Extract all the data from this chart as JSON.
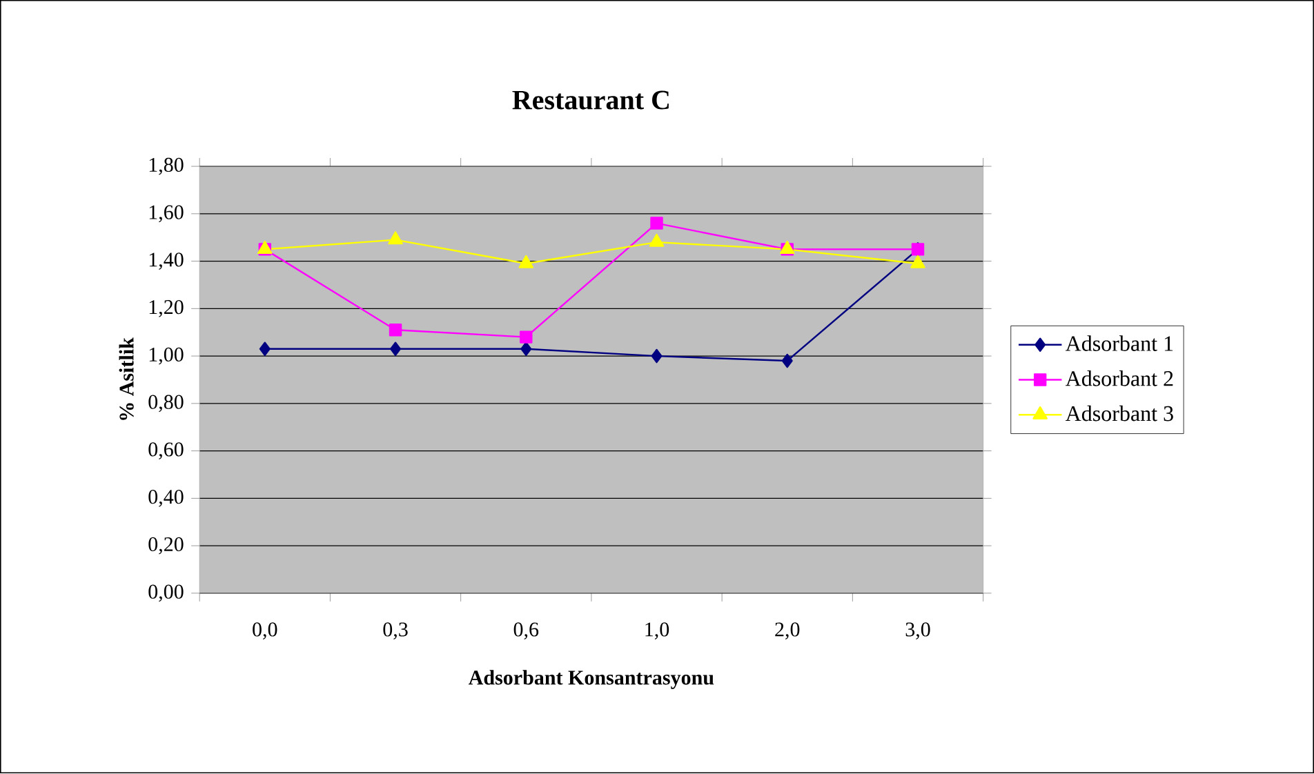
{
  "chart_data": {
    "type": "line",
    "title": "Restaurant C",
    "xlabel": "Adsorbant Konsantrasyonu",
    "ylabel": "% Asitlik",
    "categories": [
      "0,0",
      "0,3",
      "0,6",
      "1,0",
      "2,0",
      "3,0"
    ],
    "series": [
      {
        "name": "Adsorbant 1",
        "color": "#000080",
        "marker": "diamond",
        "values": [
          1.03,
          1.03,
          1.03,
          1.0,
          0.98,
          1.45
        ]
      },
      {
        "name": "Adsorbant 2",
        "color": "#ff00ff",
        "marker": "square",
        "values": [
          1.45,
          1.11,
          1.08,
          1.56,
          1.45,
          1.45
        ]
      },
      {
        "name": "Adsorbant 3",
        "color": "#ffff00",
        "marker": "triangle",
        "values": [
          1.45,
          1.49,
          1.39,
          1.48,
          1.45,
          1.39
        ]
      }
    ],
    "ylim": [
      0,
      1.8
    ],
    "yticks": [
      {
        "value": 0,
        "label": "0,00"
      },
      {
        "value": 0.2,
        "label": "0,20"
      },
      {
        "value": 0.4,
        "label": "0,40"
      },
      {
        "value": 0.6,
        "label": "0,60"
      },
      {
        "value": 0.8,
        "label": "0,80"
      },
      {
        "value": 1.0,
        "label": "1,00"
      },
      {
        "value": 1.2,
        "label": "1,20"
      },
      {
        "value": 1.4,
        "label": "1,40"
      },
      {
        "value": 1.6,
        "label": "1,60"
      },
      {
        "value": 1.8,
        "label": "1,80"
      }
    ],
    "grid": "y",
    "legend": "right"
  }
}
